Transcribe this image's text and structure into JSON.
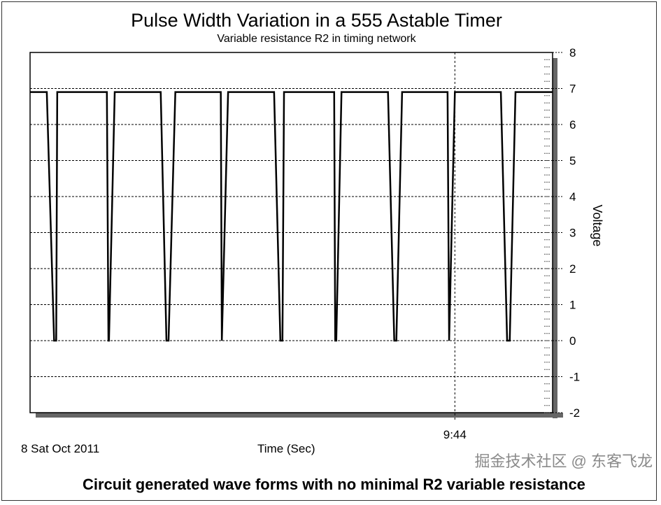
{
  "chart_data": {
    "type": "line",
    "title": "Pulse Width Variation in a 555 Astable Timer",
    "subtitle": "Variable resistance R2 in timing network",
    "xlabel": "Time (Sec)",
    "ylabel": "Voltage",
    "xlim": [
      0,
      100
    ],
    "ylim": [
      -2,
      8
    ],
    "y_ticks": [
      -2,
      -1,
      0,
      1,
      2,
      3,
      4,
      5,
      6,
      7,
      8
    ],
    "y_axis_side": "right",
    "grid": true,
    "x_marker": {
      "label": "9:44",
      "x": 81.3
    },
    "date_label": "8 Sat Oct 2011",
    "line_color": "#000000",
    "series": [
      {
        "x": [
          0,
          3.2,
          4.6,
          5.0,
          5.2,
          14.7,
          15.0,
          15.1,
          16.2,
          25.0,
          26.1,
          26.5,
          27.8,
          36.5,
          36.7,
          37.9,
          46.7,
          47.9,
          48.3,
          48.6,
          58.2,
          58.4,
          58.6,
          59.6,
          68.5,
          69.7,
          70.1,
          71.2,
          79.9,
          80.2,
          81.3,
          90.1,
          91.3,
          91.8,
          92.9,
          100
        ],
        "y": [
          6.9,
          6.9,
          0,
          0,
          6.9,
          6.9,
          0,
          0,
          6.9,
          6.9,
          0,
          0,
          6.9,
          6.9,
          0,
          6.9,
          6.9,
          0,
          0,
          6.9,
          6.9,
          0,
          0,
          6.9,
          6.9,
          0,
          0,
          6.9,
          6.9,
          0,
          6.9,
          6.9,
          0,
          0,
          6.9,
          6.9
        ]
      }
    ]
  },
  "caption": "Circuit generated wave forms with no minimal R2 variable resistance",
  "watermark": "掘金技术社区 @ 东客飞龙"
}
